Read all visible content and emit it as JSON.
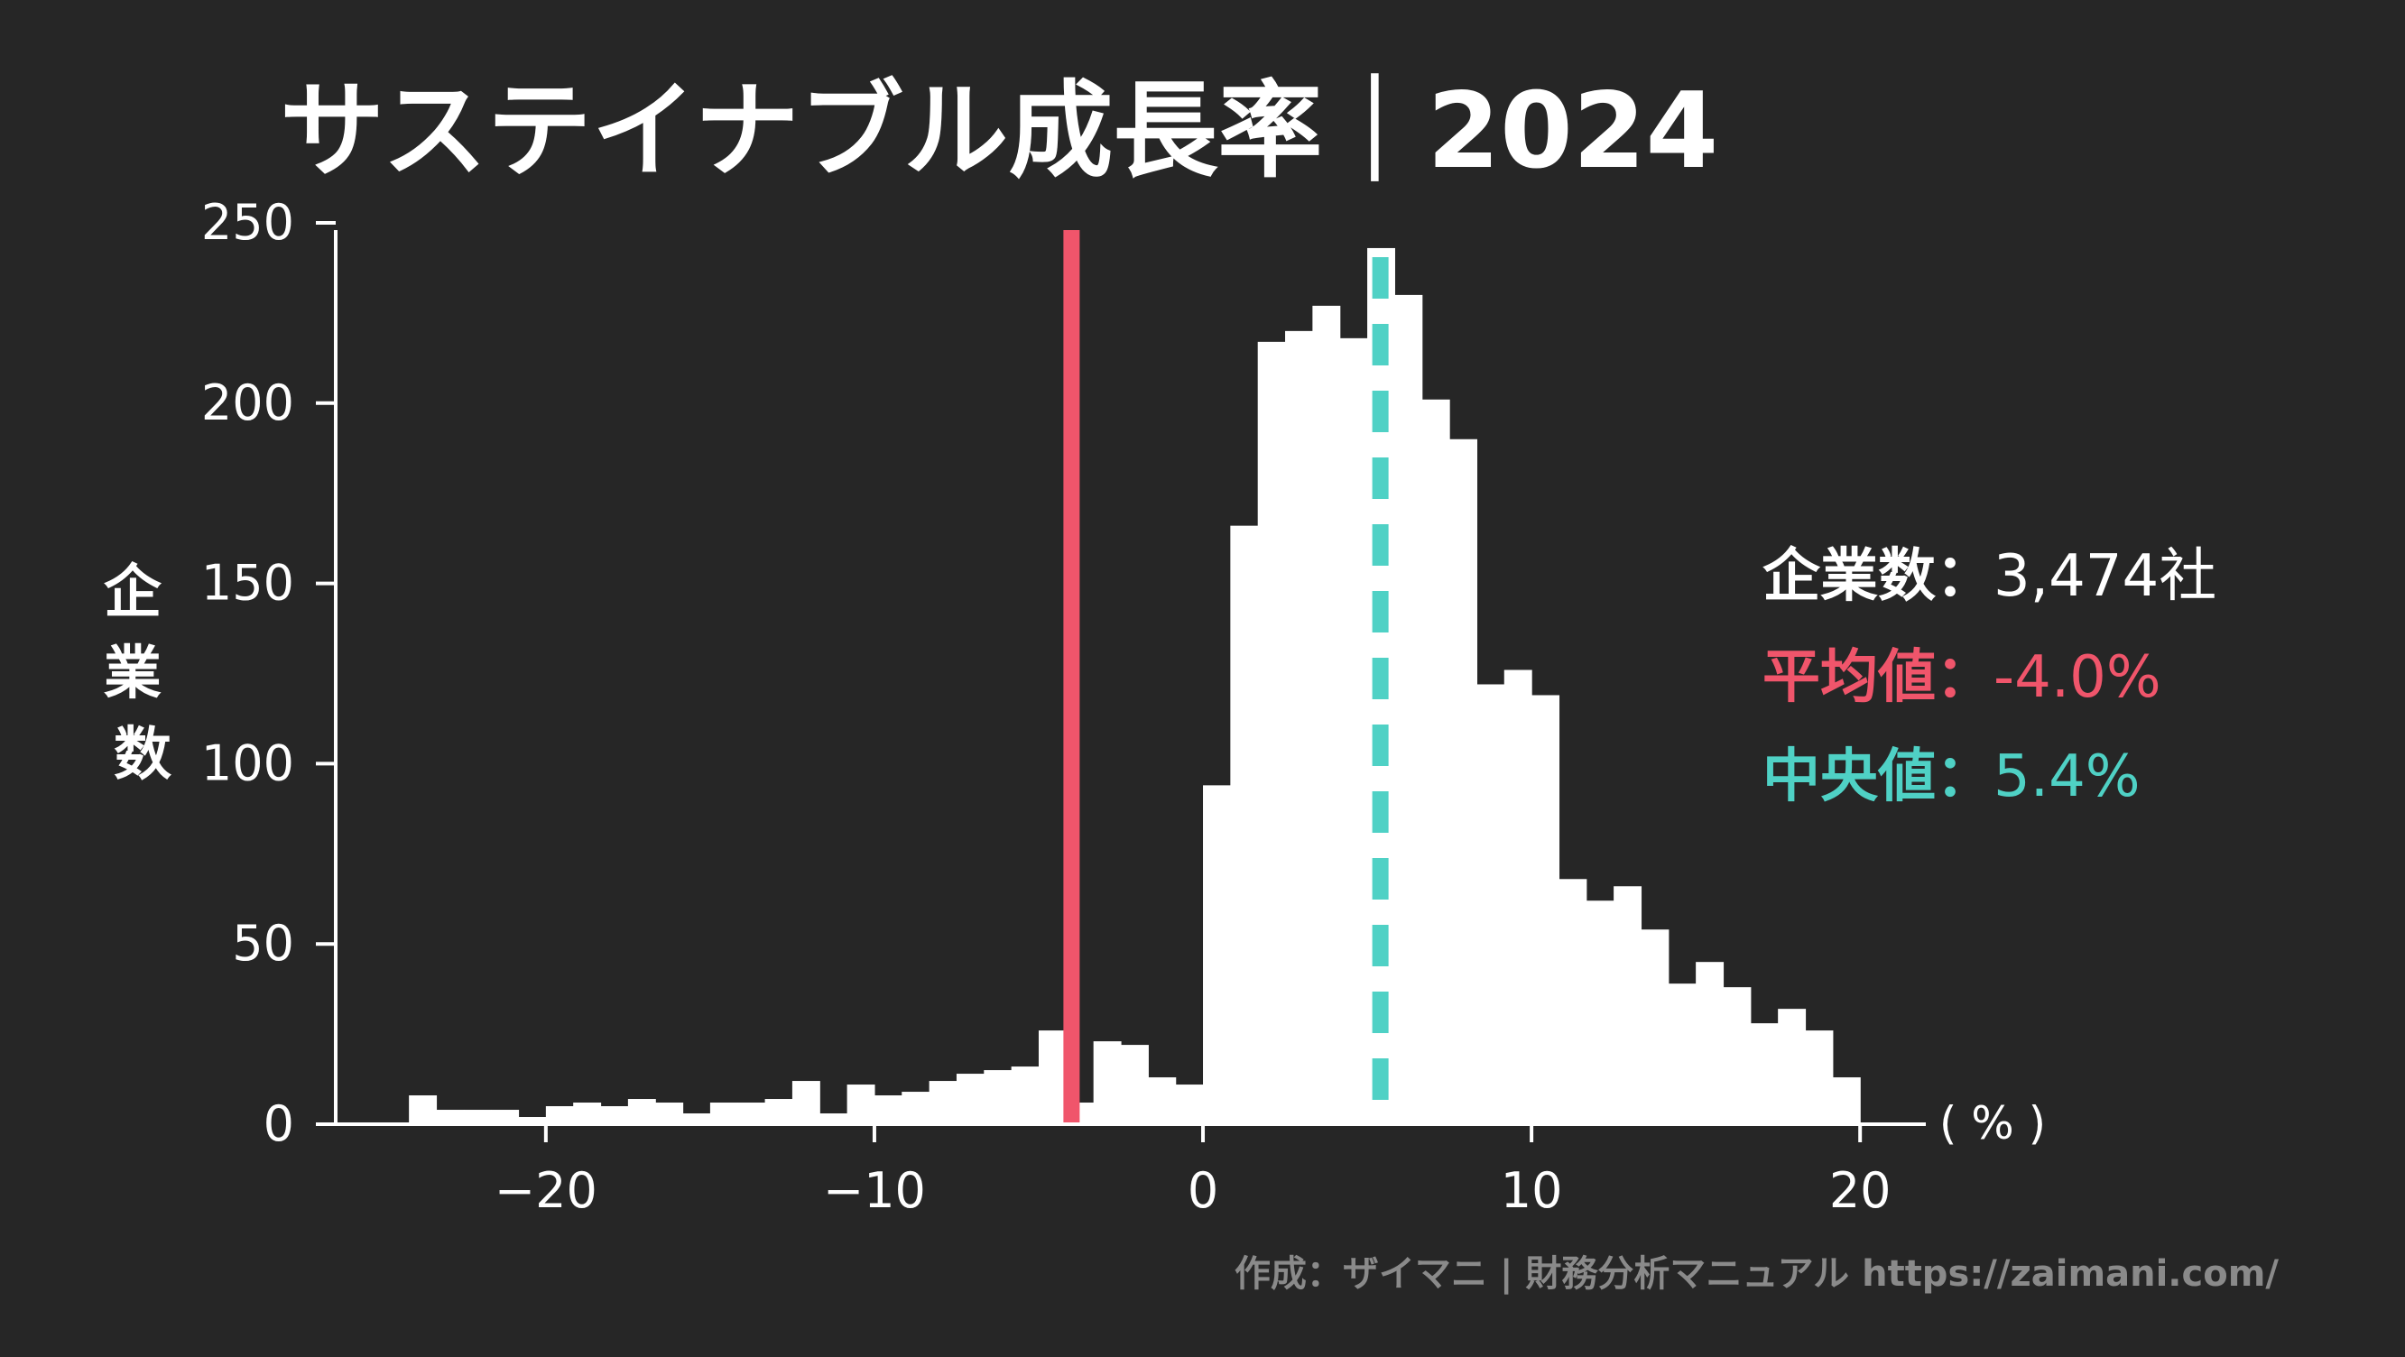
{
  "title": "サステイナブル成長率｜2024",
  "y_axis_label": "企業数",
  "x_unit_label": "( % )",
  "stats": {
    "count_label": "企業数：",
    "count_value": "3,474社",
    "mean_label": "平均値：",
    "mean_value": "-4.0%",
    "median_label": "中央値：",
    "median_value": "5.4%"
  },
  "footer": "作成：ザイマニ | 財務分析マニュアル https://zaimani.com/",
  "colors": {
    "background": "#262626",
    "bars": "#ffffff",
    "mean": "#f0556b",
    "median": "#4fd1c5",
    "footer": "#8a8a8a"
  },
  "chart_data": {
    "type": "bar",
    "subtype": "histogram",
    "bin_width": 0.833,
    "bins_start": [
      -25.0,
      -24.167,
      -23.333,
      -22.5,
      -21.667,
      -20.833,
      -20.0,
      -19.167,
      -18.333,
      -17.5,
      -16.667,
      -15.833,
      -15.0,
      -14.167,
      -13.333,
      -12.5,
      -11.667,
      -10.833,
      -10.0,
      -9.167,
      -8.333,
      -7.5,
      -6.667,
      -5.833,
      -5.0,
      -4.167,
      -3.333,
      -2.5,
      -1.667,
      -0.833,
      0.0,
      0.833,
      1.667,
      2.5,
      3.333,
      4.167,
      5.0,
      5.833,
      6.667,
      7.5,
      8.333,
      9.167,
      10.0,
      10.833,
      11.667,
      12.5,
      13.333,
      14.167,
      15.0,
      15.833,
      16.667,
      17.5,
      18.333,
      19.167
    ],
    "values": [
      0,
      8,
      4,
      4,
      4,
      2,
      5,
      6,
      5,
      7,
      6,
      3,
      6,
      6,
      7,
      12,
      3,
      11,
      8,
      9,
      12,
      14,
      15,
      16,
      26,
      6,
      23,
      22,
      13,
      11,
      94,
      166,
      217,
      220,
      227,
      218,
      243,
      230,
      201,
      190,
      122,
      126,
      119,
      68,
      62,
      66,
      54,
      39,
      45,
      38,
      28,
      32,
      26,
      13
    ],
    "mean": -4.0,
    "median": 5.4,
    "xlim": [
      -27,
      22
    ],
    "ylim": [
      0,
      255
    ],
    "xticks": [
      -20,
      -10,
      0,
      10,
      20
    ],
    "xtick_labels": [
      "−20",
      "−10",
      "0",
      "10",
      "20"
    ],
    "yticks": [
      0,
      50,
      100,
      150,
      200,
      250
    ],
    "ytick_labels": [
      "0",
      "50",
      "100",
      "150",
      "200",
      "250"
    ],
    "grid": false,
    "legend": "none"
  }
}
